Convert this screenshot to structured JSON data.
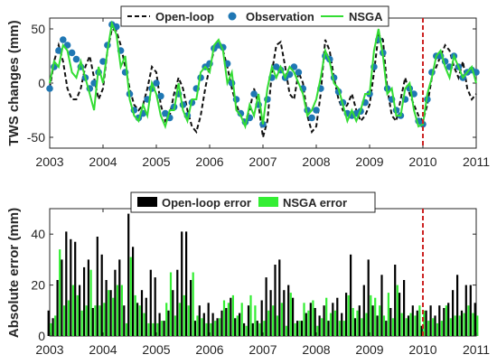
{
  "chart_data": [
    {
      "type": "line",
      "ylabel": "TWS changes (mm)",
      "x_unit": "year",
      "xlim": [
        2003,
        2011
      ],
      "ylim": [
        -60,
        60
      ],
      "xticks": [
        "2003",
        "2004",
        "2005",
        "2006",
        "2007",
        "2008",
        "2009",
        "2010",
        "2011"
      ],
      "yticks": [
        "-50",
        "0",
        "50"
      ],
      "marker_line": {
        "x": 2010.0,
        "color": "#cc2222",
        "style": "dashed"
      },
      "legend": {
        "placement": "top",
        "entries": [
          "Open-loop",
          "Observation",
          "NSGA"
        ]
      },
      "series": [
        {
          "name": "Open-loop",
          "style": "dashed",
          "color": "#111111",
          "x": [
            2003.0,
            2003.083,
            2003.167,
            2003.25,
            2003.333,
            2003.417,
            2003.5,
            2003.583,
            2003.667,
            2003.75,
            2003.833,
            2003.917,
            2004.0,
            2004.083,
            2004.167,
            2004.25,
            2004.333,
            2004.417,
            2004.5,
            2004.583,
            2004.667,
            2004.75,
            2004.833,
            2004.917,
            2005.0,
            2005.083,
            2005.167,
            2005.25,
            2005.333,
            2005.417,
            2005.5,
            2005.583,
            2005.667,
            2005.75,
            2005.833,
            2005.917,
            2006.0,
            2006.083,
            2006.167,
            2006.25,
            2006.333,
            2006.417,
            2006.5,
            2006.583,
            2006.667,
            2006.75,
            2006.833,
            2006.917,
            2007.0,
            2007.083,
            2007.167,
            2007.25,
            2007.333,
            2007.417,
            2007.5,
            2007.583,
            2007.667,
            2007.75,
            2007.833,
            2007.917,
            2008.0,
            2008.083,
            2008.167,
            2008.25,
            2008.333,
            2008.417,
            2008.5,
            2008.583,
            2008.667,
            2008.75,
            2008.833,
            2008.917,
            2009.0,
            2009.083,
            2009.167,
            2009.25,
            2009.333,
            2009.417,
            2009.5,
            2009.583,
            2009.667,
            2009.75,
            2009.833,
            2009.917,
            2010.0,
            2010.083,
            2010.167,
            2010.25,
            2010.333,
            2010.417,
            2010.5,
            2010.583,
            2010.667,
            2010.75,
            2010.833,
            2010.917,
            2011.0
          ],
          "values": [
            -5,
            20,
            35,
            20,
            -5,
            -15,
            -15,
            -5,
            15,
            25,
            5,
            -15,
            -5,
            30,
            50,
            48,
            35,
            15,
            -5,
            -20,
            -25,
            -20,
            -5,
            15,
            10,
            -20,
            -35,
            -30,
            -10,
            5,
            -5,
            -25,
            -40,
            -45,
            -30,
            -5,
            15,
            30,
            35,
            30,
            15,
            -5,
            -20,
            -30,
            -35,
            -25,
            -5,
            -20,
            -50,
            -35,
            10,
            35,
            38,
            15,
            -10,
            -15,
            10,
            0,
            -30,
            -45,
            -40,
            -10,
            40,
            30,
            5,
            -15,
            -25,
            -20,
            -10,
            -25,
            -35,
            -30,
            -20,
            10,
            45,
            40,
            -5,
            -30,
            -35,
            -15,
            5,
            -10,
            -20,
            -30,
            -35,
            -20,
            5,
            15,
            25,
            35,
            30,
            15,
            5,
            20,
            -5,
            -15,
            -10
          ]
        },
        {
          "name": "Observation",
          "style": "markers",
          "color": "#1f77b4",
          "x": [
            2003.0,
            2003.083,
            2003.167,
            2003.25,
            2003.333,
            2003.417,
            2003.5,
            2003.583,
            2003.667,
            2003.75,
            2003.833,
            2003.917,
            2004.0,
            2004.083,
            2004.167,
            2004.25,
            2004.333,
            2004.417,
            2004.5,
            2004.583,
            2004.667,
            2004.75,
            2004.833,
            2004.917,
            2005.0,
            2005.083,
            2005.167,
            2005.25,
            2005.333,
            2005.417,
            2005.5,
            2005.583,
            2005.667,
            2005.75,
            2005.833,
            2005.917,
            2006.0,
            2006.083,
            2006.167,
            2006.25,
            2006.333,
            2006.417,
            2006.5,
            2006.583,
            2006.667,
            2006.75,
            2006.833,
            2006.917,
            2007.0,
            2007.083,
            2007.167,
            2007.25,
            2007.333,
            2007.417,
            2007.5,
            2007.583,
            2007.667,
            2007.75,
            2007.833,
            2007.917,
            2008.0,
            2008.083,
            2008.167,
            2008.25,
            2008.333,
            2008.417,
            2008.5,
            2008.583,
            2008.667,
            2008.75,
            2008.833,
            2008.917,
            2009.0,
            2009.083,
            2009.167,
            2009.25,
            2009.333,
            2009.417,
            2009.5,
            2009.583,
            2009.667,
            2009.75,
            2009.833,
            2009.917,
            2010.0,
            2010.083,
            2010.167,
            2010.25,
            2010.333,
            2010.417,
            2010.5,
            2010.583,
            2010.667,
            2010.75,
            2010.833,
            2010.917,
            2011.0
          ],
          "values": [
            -5,
            15,
            30,
            40,
            35,
            28,
            22,
            15,
            5,
            -5,
            0,
            10,
            20,
            35,
            54,
            52,
            30,
            10,
            -10,
            -25,
            -32,
            -28,
            -15,
            -5,
            0,
            -12,
            -28,
            -32,
            -22,
            -10,
            -20,
            -30,
            -18,
            -5,
            5,
            15,
            18,
            32,
            35,
            33,
            18,
            0,
            -15,
            -28,
            -36,
            -32,
            -10,
            -20,
            -38,
            -15,
            5,
            15,
            12,
            5,
            8,
            15,
            10,
            -5,
            -25,
            -32,
            -25,
            -5,
            25,
            22,
            5,
            -8,
            -18,
            -28,
            -30,
            -28,
            -26,
            -18,
            -10,
            15,
            40,
            28,
            -5,
            -15,
            -25,
            -30,
            -15,
            -5,
            -10,
            -35,
            -38,
            -15,
            10,
            25,
            25,
            20,
            15,
            25,
            15,
            5,
            10,
            12,
            10
          ]
        },
        {
          "name": "NSGA",
          "style": "solid",
          "color": "#33dd33",
          "x": [
            2003.0,
            2003.083,
            2003.167,
            2003.25,
            2003.333,
            2003.417,
            2003.5,
            2003.583,
            2003.667,
            2003.75,
            2003.833,
            2003.917,
            2004.0,
            2004.083,
            2004.167,
            2004.25,
            2004.333,
            2004.417,
            2004.5,
            2004.583,
            2004.667,
            2004.75,
            2004.833,
            2004.917,
            2005.0,
            2005.083,
            2005.167,
            2005.25,
            2005.333,
            2005.417,
            2005.5,
            2005.583,
            2005.667,
            2005.75,
            2005.833,
            2005.917,
            2006.0,
            2006.083,
            2006.167,
            2006.25,
            2006.333,
            2006.417,
            2006.5,
            2006.583,
            2006.667,
            2006.75,
            2006.833,
            2006.917,
            2007.0,
            2007.083,
            2007.167,
            2007.25,
            2007.333,
            2007.417,
            2007.5,
            2007.583,
            2007.667,
            2007.75,
            2007.833,
            2007.917,
            2008.0,
            2008.083,
            2008.167,
            2008.25,
            2008.333,
            2008.417,
            2008.5,
            2008.583,
            2008.667,
            2008.75,
            2008.833,
            2008.917,
            2009.0,
            2009.083,
            2009.167,
            2009.25,
            2009.333,
            2009.417,
            2009.5,
            2009.583,
            2009.667,
            2009.75,
            2009.833,
            2009.917,
            2010.0,
            2010.083,
            2010.167,
            2010.25,
            2010.333,
            2010.417,
            2010.5,
            2010.583,
            2010.667,
            2010.75,
            2010.833,
            2010.917,
            2011.0
          ],
          "values": [
            0,
            20,
            15,
            35,
            30,
            10,
            5,
            20,
            5,
            -10,
            -25,
            15,
            0,
            30,
            55,
            45,
            15,
            25,
            -15,
            -30,
            -35,
            -20,
            -30,
            0,
            -10,
            -30,
            -40,
            -25,
            -25,
            0,
            -25,
            -35,
            -15,
            -15,
            10,
            15,
            10,
            35,
            40,
            30,
            0,
            10,
            -25,
            -30,
            -40,
            -20,
            -30,
            -10,
            -38,
            -5,
            15,
            5,
            15,
            5,
            15,
            10,
            0,
            -10,
            -30,
            -25,
            -15,
            5,
            30,
            20,
            0,
            -5,
            -20,
            -35,
            -25,
            -35,
            -25,
            -10,
            -10,
            30,
            50,
            25,
            -10,
            -5,
            -30,
            -30,
            -5,
            0,
            -25,
            -40,
            -38,
            -10,
            5,
            25,
            30,
            15,
            5,
            25,
            15,
            5,
            10,
            15,
            0
          ]
        }
      ]
    },
    {
      "type": "bar",
      "ylabel": "Absolute error (mm)",
      "x_unit": "year",
      "xlim": [
        2003,
        2011
      ],
      "ylim": [
        0,
        50
      ],
      "xticks": [
        "2003",
        "2004",
        "2005",
        "2006",
        "2007",
        "2008",
        "2009",
        "2010",
        "2011"
      ],
      "yticks": [
        "0",
        "20",
        "40"
      ],
      "marker_line": {
        "x": 2010.0,
        "color": "#cc2222",
        "style": "dashed"
      },
      "legend": {
        "placement": "top",
        "entries": [
          "Open-loop error",
          "NSGA error"
        ]
      },
      "x": [
        2003.0,
        2003.083,
        2003.167,
        2003.25,
        2003.333,
        2003.417,
        2003.5,
        2003.583,
        2003.667,
        2003.75,
        2003.833,
        2003.917,
        2004.0,
        2004.083,
        2004.167,
        2004.25,
        2004.333,
        2004.417,
        2004.5,
        2004.583,
        2004.667,
        2004.75,
        2004.833,
        2004.917,
        2005.0,
        2005.083,
        2005.167,
        2005.25,
        2005.333,
        2005.417,
        2005.5,
        2005.583,
        2005.667,
        2005.75,
        2005.833,
        2005.917,
        2006.0,
        2006.083,
        2006.167,
        2006.25,
        2006.333,
        2006.417,
        2006.5,
        2006.583,
        2006.667,
        2006.75,
        2006.833,
        2006.917,
        2007.0,
        2007.083,
        2007.167,
        2007.25,
        2007.333,
        2007.417,
        2007.5,
        2007.583,
        2007.667,
        2007.75,
        2007.833,
        2007.917,
        2008.0,
        2008.083,
        2008.167,
        2008.25,
        2008.333,
        2008.417,
        2008.5,
        2008.583,
        2008.667,
        2008.75,
        2008.833,
        2008.917,
        2009.0,
        2009.083,
        2009.167,
        2009.25,
        2009.333,
        2009.417,
        2009.5,
        2009.583,
        2009.667,
        2009.75,
        2009.833,
        2009.917,
        2010.0,
        2010.083,
        2010.167,
        2010.25,
        2010.333,
        2010.417,
        2010.5,
        2010.583,
        2010.667,
        2010.75,
        2010.833,
        2010.917,
        2011.0
      ],
      "series": [
        {
          "name": "Open-loop error",
          "color": "#000000",
          "values": [
            10,
            7,
            22,
            30,
            41,
            38,
            37,
            20,
            27,
            30,
            11,
            39,
            32,
            22,
            18,
            26,
            30,
            12,
            48,
            35,
            13,
            18,
            15,
            26,
            23,
            9,
            6,
            10,
            18,
            26,
            41,
            41,
            22,
            6,
            12,
            9,
            13,
            9,
            7,
            10,
            11,
            15,
            7,
            9,
            5,
            12,
            5,
            6,
            14,
            23,
            18,
            28,
            30,
            18,
            20,
            15,
            6,
            6,
            9,
            13,
            11,
            8,
            12,
            6,
            13,
            15,
            9,
            17,
            32,
            7,
            12,
            20,
            30,
            12,
            8,
            24,
            6,
            11,
            28,
            17,
            22,
            8,
            12,
            10,
            4,
            10,
            12,
            8,
            12,
            11,
            13,
            18,
            24,
            10,
            20,
            20,
            13
          ]
        },
        {
          "name": "NSGA error",
          "color": "#33ee33",
          "values": [
            5,
            8,
            34,
            12,
            14,
            20,
            16,
            10,
            12,
            26,
            12,
            12,
            13,
            18,
            15,
            20,
            20,
            5,
            31,
            16,
            12,
            9,
            5,
            5,
            5,
            6,
            13,
            25,
            8,
            13,
            16,
            12,
            25,
            8,
            7,
            5,
            5,
            6,
            7,
            14,
            13,
            16,
            8,
            13,
            4,
            16,
            12,
            5,
            6,
            10,
            12,
            8,
            13,
            4,
            17,
            5,
            6,
            13,
            10,
            14,
            4,
            7,
            15,
            9,
            10,
            6,
            6,
            16,
            11,
            10,
            7,
            9,
            16,
            15,
            12,
            8,
            17,
            7,
            20,
            9,
            7,
            9,
            8,
            12,
            10,
            6,
            7,
            5,
            6,
            12,
            7,
            8,
            8,
            9,
            12,
            9,
            8
          ]
        }
      ]
    }
  ]
}
